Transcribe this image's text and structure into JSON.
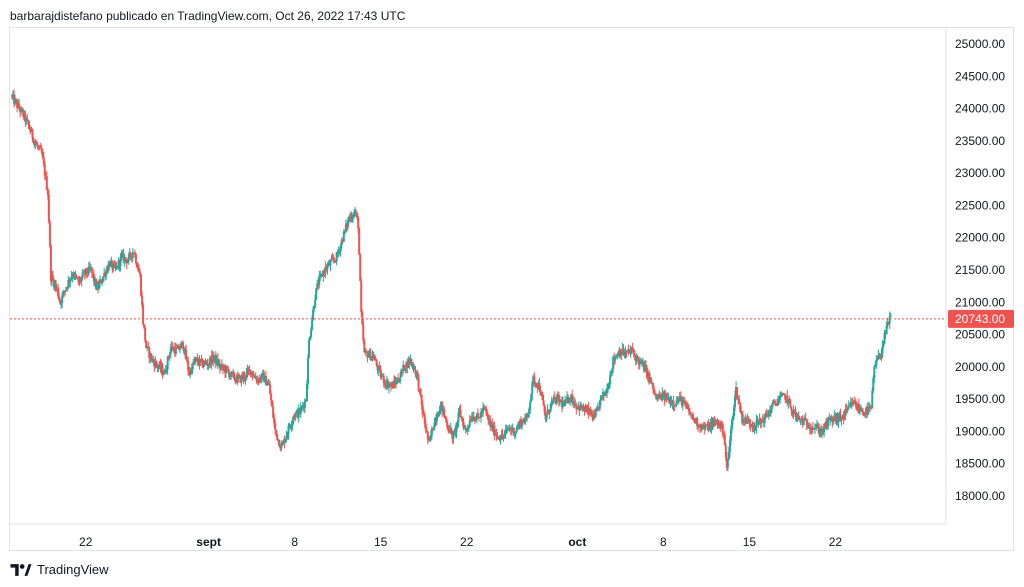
{
  "header": {
    "attribution": "barbarajdistefano publicado en TradingView.com, Oct 26, 2022 17:43 UTC"
  },
  "footer": {
    "brand": "TradingView",
    "logo_icon": "tradingview-logo-icon"
  },
  "colors": {
    "up": "#26a69a",
    "down": "#ef5350",
    "price_line": "#ef5350",
    "price_label_bg": "#ef5350",
    "axis_text": "#131722",
    "border": "#e0e3eb"
  },
  "chart_data": {
    "type": "candlestick",
    "symbol_note": "",
    "yaxis": {
      "ticks": [
        25000,
        24500,
        24000,
        23500,
        23000,
        22500,
        22000,
        21500,
        21000,
        20500,
        20000,
        19500,
        19000,
        18500,
        18000
      ],
      "tick_labels": [
        "25000.00",
        "24500.00",
        "24000.00",
        "23500.00",
        "23000.00",
        "22500.00",
        "22000.00",
        "21500.00",
        "21000.00",
        "20500.00",
        "20000.00",
        "19500.00",
        "19000.00",
        "18500.00",
        "18000.00"
      ],
      "range": [
        17600,
        25200
      ],
      "position": "right"
    },
    "xaxis": {
      "range": [
        "2022-08-16",
        "2022-10-31"
      ],
      "ticks": [
        {
          "date": "2022-08-22",
          "label": "22",
          "bold": false
        },
        {
          "date": "2022-09-01",
          "label": "sept",
          "bold": true
        },
        {
          "date": "2022-09-08",
          "label": "8",
          "bold": false
        },
        {
          "date": "2022-09-15",
          "label": "15",
          "bold": false
        },
        {
          "date": "2022-09-22",
          "label": "22",
          "bold": false
        },
        {
          "date": "2022-10-01",
          "label": "oct",
          "bold": true
        },
        {
          "date": "2022-10-08",
          "label": "8",
          "bold": false
        },
        {
          "date": "2022-10-15",
          "label": "15",
          "bold": false
        },
        {
          "date": "2022-10-22",
          "label": "22",
          "bold": false
        }
      ]
    },
    "last_price": 20743,
    "last_price_label": "20743.00",
    "price_path": [
      [
        "2022-08-16",
        24200
      ],
      [
        "2022-08-16T12",
        24050
      ],
      [
        "2022-08-17",
        23900
      ],
      [
        "2022-08-17T12",
        23700
      ],
      [
        "2022-08-18",
        23450
      ],
      [
        "2022-08-18T12",
        23300
      ],
      [
        "2022-08-19",
        22700
      ],
      [
        "2022-08-19T06",
        21400
      ],
      [
        "2022-08-19T18",
        21200
      ],
      [
        "2022-08-20",
        21000
      ],
      [
        "2022-08-20T12",
        21250
      ],
      [
        "2022-08-21",
        21450
      ],
      [
        "2022-08-21T12",
        21300
      ],
      [
        "2022-08-22",
        21450
      ],
      [
        "2022-08-22T12",
        21500
      ],
      [
        "2022-08-23",
        21200
      ],
      [
        "2022-08-23T12",
        21400
      ],
      [
        "2022-08-24",
        21600
      ],
      [
        "2022-08-24T12",
        21500
      ],
      [
        "2022-08-25",
        21700
      ],
      [
        "2022-08-25T12",
        21650
      ],
      [
        "2022-08-26",
        21800
      ],
      [
        "2022-08-26T12",
        21400
      ],
      [
        "2022-08-26T18",
        20700
      ],
      [
        "2022-08-27",
        20300
      ],
      [
        "2022-08-27T12",
        20100
      ],
      [
        "2022-08-28",
        20000
      ],
      [
        "2022-08-28T12",
        19900
      ],
      [
        "2022-08-29",
        20300
      ],
      [
        "2022-08-29T12",
        20250
      ],
      [
        "2022-08-30",
        20350
      ],
      [
        "2022-08-30T12",
        19900
      ],
      [
        "2022-08-31",
        20100
      ],
      [
        "2022-08-31T12",
        20050
      ],
      [
        "2022-09-01",
        20050
      ],
      [
        "2022-09-01T12",
        20150
      ],
      [
        "2022-09-02",
        20000
      ],
      [
        "2022-09-02T12",
        19950
      ],
      [
        "2022-09-03",
        19850
      ],
      [
        "2022-09-03T12",
        19800
      ],
      [
        "2022-09-04",
        19850
      ],
      [
        "2022-09-04T12",
        19950
      ],
      [
        "2022-09-05",
        19800
      ],
      [
        "2022-09-05T12",
        19850
      ],
      [
        "2022-09-06",
        19700
      ],
      [
        "2022-09-06T12",
        19000
      ],
      [
        "2022-09-07",
        18750
      ],
      [
        "2022-09-07T12",
        19000
      ],
      [
        "2022-09-08",
        19250
      ],
      [
        "2022-09-08T12",
        19300
      ],
      [
        "2022-09-09",
        19500
      ],
      [
        "2022-09-09T06",
        20400
      ],
      [
        "2022-09-09T18",
        21100
      ],
      [
        "2022-09-10",
        21300
      ],
      [
        "2022-09-10T12",
        21500
      ],
      [
        "2022-09-11",
        21600
      ],
      [
        "2022-09-11T12",
        21700
      ],
      [
        "2022-09-12",
        22000
      ],
      [
        "2022-09-12T12",
        22300
      ],
      [
        "2022-09-13",
        22400
      ],
      [
        "2022-09-13T06",
        22200
      ],
      [
        "2022-09-13T12",
        20800
      ],
      [
        "2022-09-13T18",
        20200
      ],
      [
        "2022-09-14",
        20200
      ],
      [
        "2022-09-14T12",
        20150
      ],
      [
        "2022-09-15",
        19900
      ],
      [
        "2022-09-15T12",
        19750
      ],
      [
        "2022-09-16",
        19700
      ],
      [
        "2022-09-16T12",
        19800
      ],
      [
        "2022-09-17",
        20000
      ],
      [
        "2022-09-17T12",
        20100
      ],
      [
        "2022-09-18",
        19900
      ],
      [
        "2022-09-18T12",
        19300
      ],
      [
        "2022-09-19",
        18800
      ],
      [
        "2022-09-19T12",
        19200
      ],
      [
        "2022-09-20",
        19400
      ],
      [
        "2022-09-20T12",
        19100
      ],
      [
        "2022-09-21",
        18900
      ],
      [
        "2022-09-21T12",
        19300
      ],
      [
        "2022-09-22",
        19000
      ],
      [
        "2022-09-22T12",
        19250
      ],
      [
        "2022-09-23",
        19200
      ],
      [
        "2022-09-23T12",
        19350
      ],
      [
        "2022-09-24",
        19100
      ],
      [
        "2022-09-24T12",
        18950
      ],
      [
        "2022-09-25",
        18900
      ],
      [
        "2022-09-25T12",
        19050
      ],
      [
        "2022-09-26",
        19000
      ],
      [
        "2022-09-26T12",
        19150
      ],
      [
        "2022-09-27",
        19200
      ],
      [
        "2022-09-27T12",
        19800
      ],
      [
        "2022-09-28",
        19700
      ],
      [
        "2022-09-28T12",
        19200
      ],
      [
        "2022-09-29",
        19450
      ],
      [
        "2022-09-29T12",
        19500
      ],
      [
        "2022-09-30",
        19400
      ],
      [
        "2022-09-30T12",
        19550
      ],
      [
        "2022-10-01",
        19400
      ],
      [
        "2022-10-01T12",
        19350
      ],
      [
        "2022-10-02",
        19300
      ],
      [
        "2022-10-02T12",
        19200
      ],
      [
        "2022-10-03",
        19500
      ],
      [
        "2022-10-03T12",
        19650
      ],
      [
        "2022-10-04",
        20100
      ],
      [
        "2022-10-04T12",
        20250
      ],
      [
        "2022-10-05",
        20200
      ],
      [
        "2022-10-05T12",
        20250
      ],
      [
        "2022-10-06",
        20100
      ],
      [
        "2022-10-06T12",
        20000
      ],
      [
        "2022-10-07",
        19800
      ],
      [
        "2022-10-07T12",
        19500
      ],
      [
        "2022-10-08",
        19550
      ],
      [
        "2022-10-08T12",
        19500
      ],
      [
        "2022-10-09",
        19450
      ],
      [
        "2022-10-09T12",
        19500
      ],
      [
        "2022-10-10",
        19350
      ],
      [
        "2022-10-10T12",
        19200
      ],
      [
        "2022-10-11",
        19100
      ],
      [
        "2022-10-11T12",
        19050
      ],
      [
        "2022-10-12",
        19100
      ],
      [
        "2022-10-12T12",
        19150
      ],
      [
        "2022-10-13",
        19000
      ],
      [
        "2022-10-13T06",
        18400
      ],
      [
        "2022-10-13T18",
        19300
      ],
      [
        "2022-10-14",
        19650
      ],
      [
        "2022-10-14T12",
        19200
      ],
      [
        "2022-10-15",
        19150
      ],
      [
        "2022-10-15T12",
        19100
      ],
      [
        "2022-10-16",
        19150
      ],
      [
        "2022-10-16T12",
        19250
      ],
      [
        "2022-10-17",
        19400
      ],
      [
        "2022-10-17T12",
        19500
      ],
      [
        "2022-10-18",
        19550
      ],
      [
        "2022-10-18T12",
        19350
      ],
      [
        "2022-10-19",
        19200
      ],
      [
        "2022-10-19T12",
        19150
      ],
      [
        "2022-10-20",
        19100
      ],
      [
        "2022-10-20T12",
        19050
      ],
      [
        "2022-10-21",
        19000
      ],
      [
        "2022-10-21T12",
        19150
      ],
      [
        "2022-10-22",
        19200
      ],
      [
        "2022-10-22T12",
        19200
      ],
      [
        "2022-10-23",
        19300
      ],
      [
        "2022-10-23T12",
        19450
      ],
      [
        "2022-10-24",
        19350
      ],
      [
        "2022-10-24T12",
        19300
      ],
      [
        "2022-10-25",
        19350
      ],
      [
        "2022-10-25T06",
        20000
      ],
      [
        "2022-10-25T18",
        20200
      ],
      [
        "2022-10-26",
        20400
      ],
      [
        "2022-10-26T12",
        20743
      ]
    ]
  }
}
